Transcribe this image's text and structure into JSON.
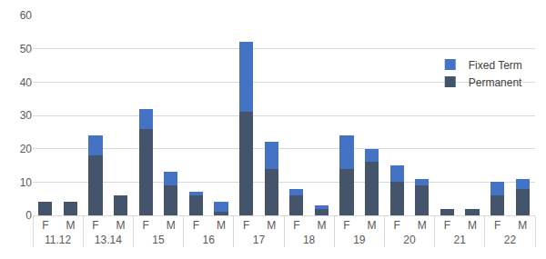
{
  "chart_data": {
    "type": "bar",
    "stacked": true,
    "categories": [
      [
        "11.12",
        "F"
      ],
      [
        "11.12",
        "M"
      ],
      [
        "13.14",
        "F"
      ],
      [
        "13.14",
        "M"
      ],
      [
        "15",
        "F"
      ],
      [
        "15",
        "M"
      ],
      [
        "16",
        "F"
      ],
      [
        "16",
        "M"
      ],
      [
        "17",
        "F"
      ],
      [
        "17",
        "M"
      ],
      [
        "18",
        "F"
      ],
      [
        "18",
        "M"
      ],
      [
        "19",
        "F"
      ],
      [
        "19",
        "M"
      ],
      [
        "20",
        "F"
      ],
      [
        "20",
        "M"
      ],
      [
        "21",
        "F"
      ],
      [
        "21",
        "M"
      ],
      [
        "22",
        "F"
      ],
      [
        "22",
        "M"
      ]
    ],
    "series": [
      {
        "name": "Permanent",
        "color": "#44546a",
        "values": [
          4,
          4,
          18,
          6,
          26,
          9,
          6,
          1,
          31,
          14,
          6,
          2,
          14,
          16,
          10,
          9,
          2,
          2,
          6,
          8
        ]
      },
      {
        "name": "Fixed Term",
        "color": "#4472c4",
        "values": [
          0,
          0,
          6,
          0,
          6,
          4,
          1,
          3,
          21,
          8,
          2,
          1,
          10,
          4,
          5,
          2,
          0,
          0,
          4,
          3
        ]
      }
    ],
    "ylim": [
      0,
      60
    ],
    "yticks": [
      0,
      10,
      20,
      30,
      40,
      50,
      60
    ],
    "grid": true,
    "legend": "right"
  }
}
